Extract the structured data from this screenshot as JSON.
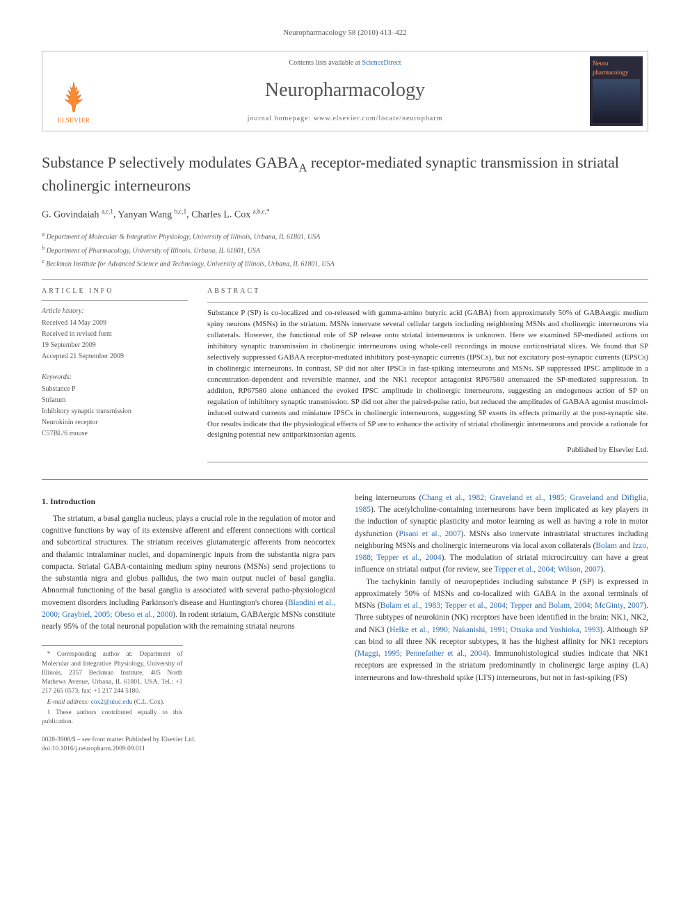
{
  "journal_ref": "Neuropharmacology 58 (2010) 413–422",
  "header": {
    "publisher": "ELSEVIER",
    "contents_prefix": "Contents lists available at ",
    "contents_link": "ScienceDirect",
    "journal_name": "Neuropharmacology",
    "homepage_prefix": "journal homepage: ",
    "homepage_url": "www.elsevier.com/locate/neuropharm",
    "cover_title": "Neuro pharmacology"
  },
  "title_pre": "Substance P selectively modulates GABA",
  "title_sub": "A",
  "title_post": " receptor-mediated synaptic transmission in striatal cholinergic interneurons",
  "authors_html": "G. Govindaiah <sup>a,c,1</sup>, Yanyan Wang <sup>b,c,1</sup>, Charles L. Cox <sup>a,b,c,*</sup>",
  "affiliations": [
    "a Department of Molecular & Integrative Physiology, University of Illinois, Urbana, IL 61801, USA",
    "b Department of Pharmacology, University of Illinois, Urbana, IL 61801, USA",
    "c Beckman Institute for Advanced Science and Technology, University of Illinois, Urbana, IL 61801, USA"
  ],
  "info": {
    "heading": "ARTICLE INFO",
    "history_label": "Article history:",
    "history": [
      "Received 14 May 2009",
      "Received in revised form",
      "19 September 2009",
      "Accepted 21 September 2009"
    ],
    "keywords_label": "Keywords:",
    "keywords": [
      "Substance P",
      "Striatum",
      "Inhibitory synaptic transmission",
      "Neurokinin receptor",
      "C57BL/6 mouse"
    ]
  },
  "abstract": {
    "heading": "ABSTRACT",
    "text": "Substance P (SP) is co-localized and co-released with gamma-amino butyric acid (GABA) from approximately 50% of GABAergic medium spiny neurons (MSNs) in the striatum. MSNs innervate several cellular targets including neighboring MSNs and cholinergic interneurons via collaterals. However, the functional role of SP release onto striatal interneurons is unknown. Here we examined SP-mediated actions on inhibitory synaptic transmission in cholinergic interneurons using whole-cell recordings in mouse corticostriatal slices. We found that SP selectively suppressed GABAA receptor-mediated inhibitory post-synaptic currents (IPSCs), but not excitatory post-synaptic currents (EPSCs) in cholinergic interneurons. In contrast, SP did not alter IPSCs in fast-spiking interneurons and MSNs. SP suppressed IPSC amplitude in a concentration-dependent and reversible manner, and the NK1 receptor antagonist RP67580 attenuated the SP-mediated suppression. In addition, RP67580 alone enhanced the evoked IPSC amplitude in cholinergic interneurons, suggesting an endogenous action of SP on regulation of inhibitory synaptic transmission. SP did not alter the paired-pulse ratio, but reduced the amplitudes of GABAA agonist muscimol-induced outward currents and miniature IPSCs in cholinergic interneurons, suggesting SP exerts its effects primarily at the post-synaptic site. Our results indicate that the physiological effects of SP are to enhance the activity of striatal cholinergic interneurons and provide a rationale for designing potential new antiparkinsonian agents.",
    "published_by": "Published by Elsevier Ltd."
  },
  "sections": {
    "intro_head": "1. Introduction",
    "para1a": "The striatum, a basal ganglia nucleus, plays a crucial role in the regulation of motor and cognitive functions by way of its extensive afferent and efferent connections with cortical and subcortical structures. The striatum receives glutamatergic afferents from neocortex and thalamic intralaminar nuclei, and dopaminergic inputs from the substantia nigra pars compacta. Striatal GABA-containing medium spiny neurons (MSNs) send projections to the substantia nigra and globus pallidus, the two main output nuclei of basal ganglia. Abnormal functioning of the basal ganglia is associated with several patho-physiological movement disorders including Parkinson's disease and Huntington's chorea (",
    "cite1": "Blandini et al., 2000; Graybiel, 2005; Obeso et al., 2000",
    "para1b": "). In rodent striatum, GABAergic MSNs constitute nearly 95% of the total neuronal population with the remaining striatal neurons",
    "para2a": "being interneurons (",
    "cite2": "Chang et al., 1982; Graveland et al., 1985; Graveland and Difiglia, 1985",
    "para2b": "). The acetylcholine-containing interneurons have been implicated as key players in the induction of synaptic plasticity and motor learning as well as having a role in motor dysfunction (",
    "cite3": "Pisani et al., 2007",
    "para2c": "). MSNs also innervate intrastriatal structures including neighboring MSNs and cholinergic interneurons via local axon collaterals (",
    "cite4": "Bolam and Izzo, 1988; Tepper et al., 2004",
    "para2d": "). The modulation of striatal microcircuitry can have a great influence on striatal output (for review, see ",
    "cite5": "Tepper et al., 2004; Wilson, 2007",
    "para2e": ").",
    "para3a": "The tachykinin family of neuropeptides including substance P (SP) is expressed in approximately 50% of MSNs and co-localized with GABA in the axonal terminals of MSNs (",
    "cite6": "Bolam et al., 1983; Tepper et al., 2004; Tepper and Bolam, 2004; McGinty, 2007",
    "para3b": "). Three subtypes of neurokinin (NK) receptors have been identified in the brain: NK1, NK2, and NK3 (",
    "cite7": "Helke et al., 1990; Nakanishi, 1991; Otsuka and Yoshioka, 1993",
    "para3c": "). Although SP can bind to all three NK receptor subtypes, it has the highest affinity for NK1 receptors (",
    "cite8": "Maggi, 1995; Pennefather et al., 2004",
    "para3d": "). Immunohistological studies indicate that NK1 receptors are expressed in the striatum predominantly in cholinergic large aspiny (LA) interneurons and low-threshold spike (LTS) interneurons, but not in fast-spiking (FS)"
  },
  "footnotes": {
    "corresponding": "* Corresponding author at: Department of Molecular and Integrative Physiology, University of Illinois, 2357 Beckman Institute, 405 North Mathews Avenue, Urbana, IL 61801, USA. Tel.: +1 217 265 0573; fax: +1 217 244 5180.",
    "email_label": "E-mail address: ",
    "email": "cox2@uiuc.edu",
    "email_suffix": " (C.L. Cox).",
    "equal": "1 These authors contributed equally to this publication."
  },
  "footer": {
    "line1": "0028-3908/$ – see front matter Published by Elsevier Ltd.",
    "line2": "doi:10.1016/j.neuropharm.2009.09.011"
  },
  "colors": {
    "link": "#2a6db5",
    "publisher_orange": "#ff6600",
    "text": "#333333",
    "muted": "#555555",
    "rule": "#888888"
  }
}
